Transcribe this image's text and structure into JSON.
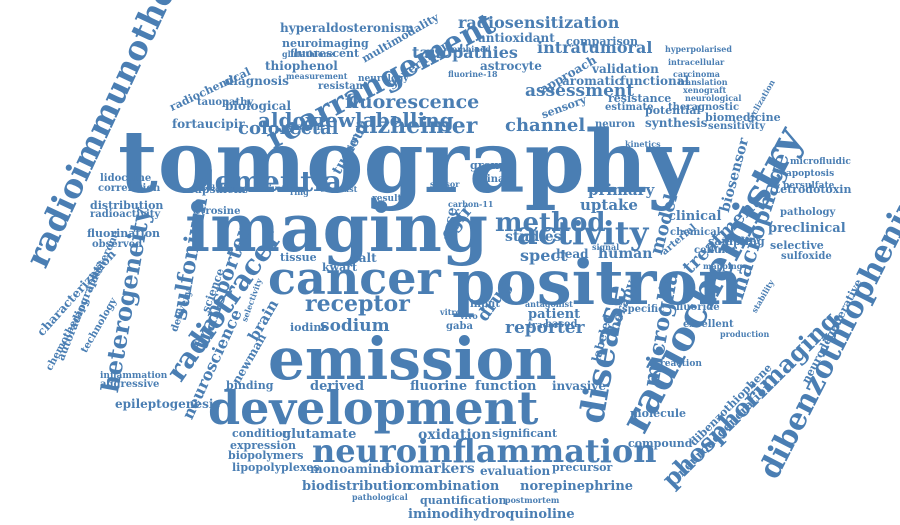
{
  "color": "#4a7eb3",
  "words": [
    "tomography",
    "imaging",
    "emission",
    "positron",
    "development",
    "cancer",
    "neuroinflammation",
    "radiochemistry",
    "radioimmunotherapy",
    "dibenzothiophenium",
    "phosphorimaging",
    "rearrangement",
    "disease",
    "heterogeneity",
    "radiotracer",
    "activity",
    "dementia",
    "alzheimer",
    "aldoviewlabelling",
    "fluorescence",
    "tauopathies",
    "colorectal",
    "assessment",
    "channel",
    "receptor",
    "sulfonium",
    "transporter",
    "sodium",
    "microglia",
    "macrophage",
    "treatment",
    "model",
    "reporter",
    "spect",
    "egfr",
    "drug",
    "method",
    "uptake",
    "primary",
    "human",
    "clinical",
    "preclinical",
    "biosensor",
    "intratumoral",
    "radiosensitization",
    "hyperaldosteronism",
    "neuroimaging",
    "multimodality",
    "antioxidant",
    "comparison",
    "astrocyte",
    "validation",
    "thiophenol",
    "generation",
    "diagnosis",
    "fluorescent",
    "approach",
    "aromatic",
    "functional",
    "theragnostic",
    "biomedicine",
    "synthesis",
    "resistance",
    "potential",
    "sensitivity",
    "biological",
    "fortaucipir",
    "tauopathy",
    "radiochemical",
    "resistant",
    "neurology",
    "system",
    "capsaicin",
    "tyrosine",
    "distribution",
    "radioactivity",
    "fluorination",
    "lidocaine",
    "correlation",
    "aggressive",
    "epileptogenesis",
    "inflammation",
    "autoradiography",
    "chemotherapy",
    "technology",
    "characterization",
    "aldosterone",
    "observed",
    "neuroscience",
    "newman",
    "iodine",
    "derived",
    "fluorine",
    "function",
    "invasive",
    "binding",
    "condition",
    "glutamate",
    "oxidation",
    "significant",
    "expression",
    "biopolymers",
    "lipopolyplexes",
    "monoamine",
    "biomarkers",
    "evaluation",
    "precursor",
    "biodistribution",
    "combination",
    "norepinephrine",
    "quantification",
    "iminodihydroquinoline",
    "pathological",
    "postmortem",
    "neurodegeneration",
    "neurodegenerative",
    "dibenzothiophene",
    "compound",
    "molecule",
    "therapy",
    "labeled",
    "patient",
    "based",
    "specific",
    "fluoride",
    "excellent",
    "tetrodotoxin",
    "pathology",
    "selective",
    "sulfoxide",
    "cellular",
    "sampling",
    "chemical",
    "arterial",
    "apoptosis",
    "persulfate",
    "microfluidic",
    "studies",
    "tissue",
    "kwart",
    "salt",
    "head",
    "result",
    "group",
    "kinase",
    "neuron",
    "estimate",
    "sensory",
    "carcinoma",
    "translation",
    "xenograft",
    "neurological",
    "hyperpolarised",
    "intracellular",
    "glutathione",
    "measurement",
    "combined",
    "fluorine-18",
    "science",
    "delivery",
    "reaction",
    "selectivity",
    "stability",
    "kinetics",
    "signal",
    "mapping",
    "antagonist",
    "contrast",
    "labeling",
    "activation",
    "anatomy",
    "production",
    "cyclization",
    "ovarian",
    "carbon-11",
    "tracer",
    "vitro",
    "vivo",
    "brain",
    "tumour",
    "ring",
    "case",
    "sensor",
    "input",
    "gaba"
  ]
}
